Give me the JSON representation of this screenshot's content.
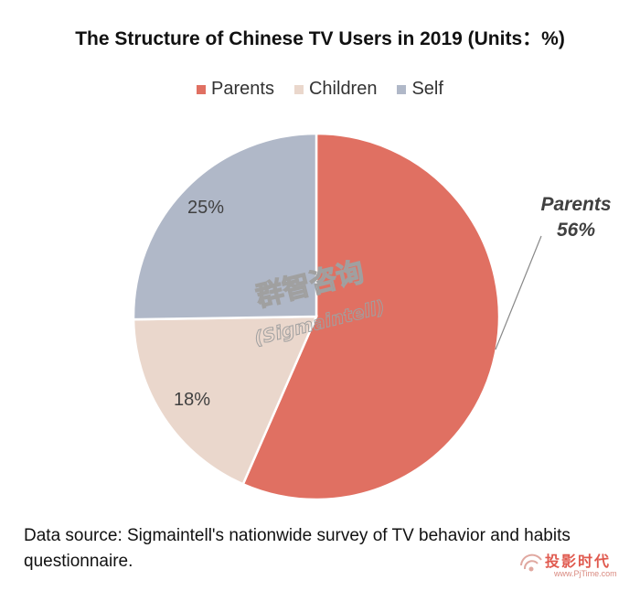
{
  "chart_data": {
    "type": "pie",
    "title": "The Structure of Chinese TV Users in 2019 (Units：%)",
    "slices": [
      {
        "name": "Parents",
        "value": 56,
        "label": "Parents\n56%",
        "color": "#e07062"
      },
      {
        "name": "Children",
        "value": 18,
        "label": "18%",
        "color": "#ead7cc"
      },
      {
        "name": "Self",
        "value": 25,
        "label": "25%",
        "color": "#b0b8c8"
      }
    ],
    "legend_position": "top"
  },
  "legend": [
    {
      "label": "Parents",
      "color": "#e07062"
    },
    {
      "label": "Children",
      "color": "#ead7cc"
    },
    {
      "label": "Self",
      "color": "#b0b8c8"
    }
  ],
  "labels": {
    "parents_name": "Parents",
    "parents_value": "56%",
    "children_value": "18%",
    "self_value": "25%"
  },
  "watermark": {
    "cn": "群智咨询",
    "en": "(Sigmaintell)"
  },
  "source": "Data source: Sigmaintell's nationwide survey of TV behavior and habits questionnaire.",
  "corner_logo": {
    "cn": "投影时代",
    "url": "www.PjTime.com"
  }
}
